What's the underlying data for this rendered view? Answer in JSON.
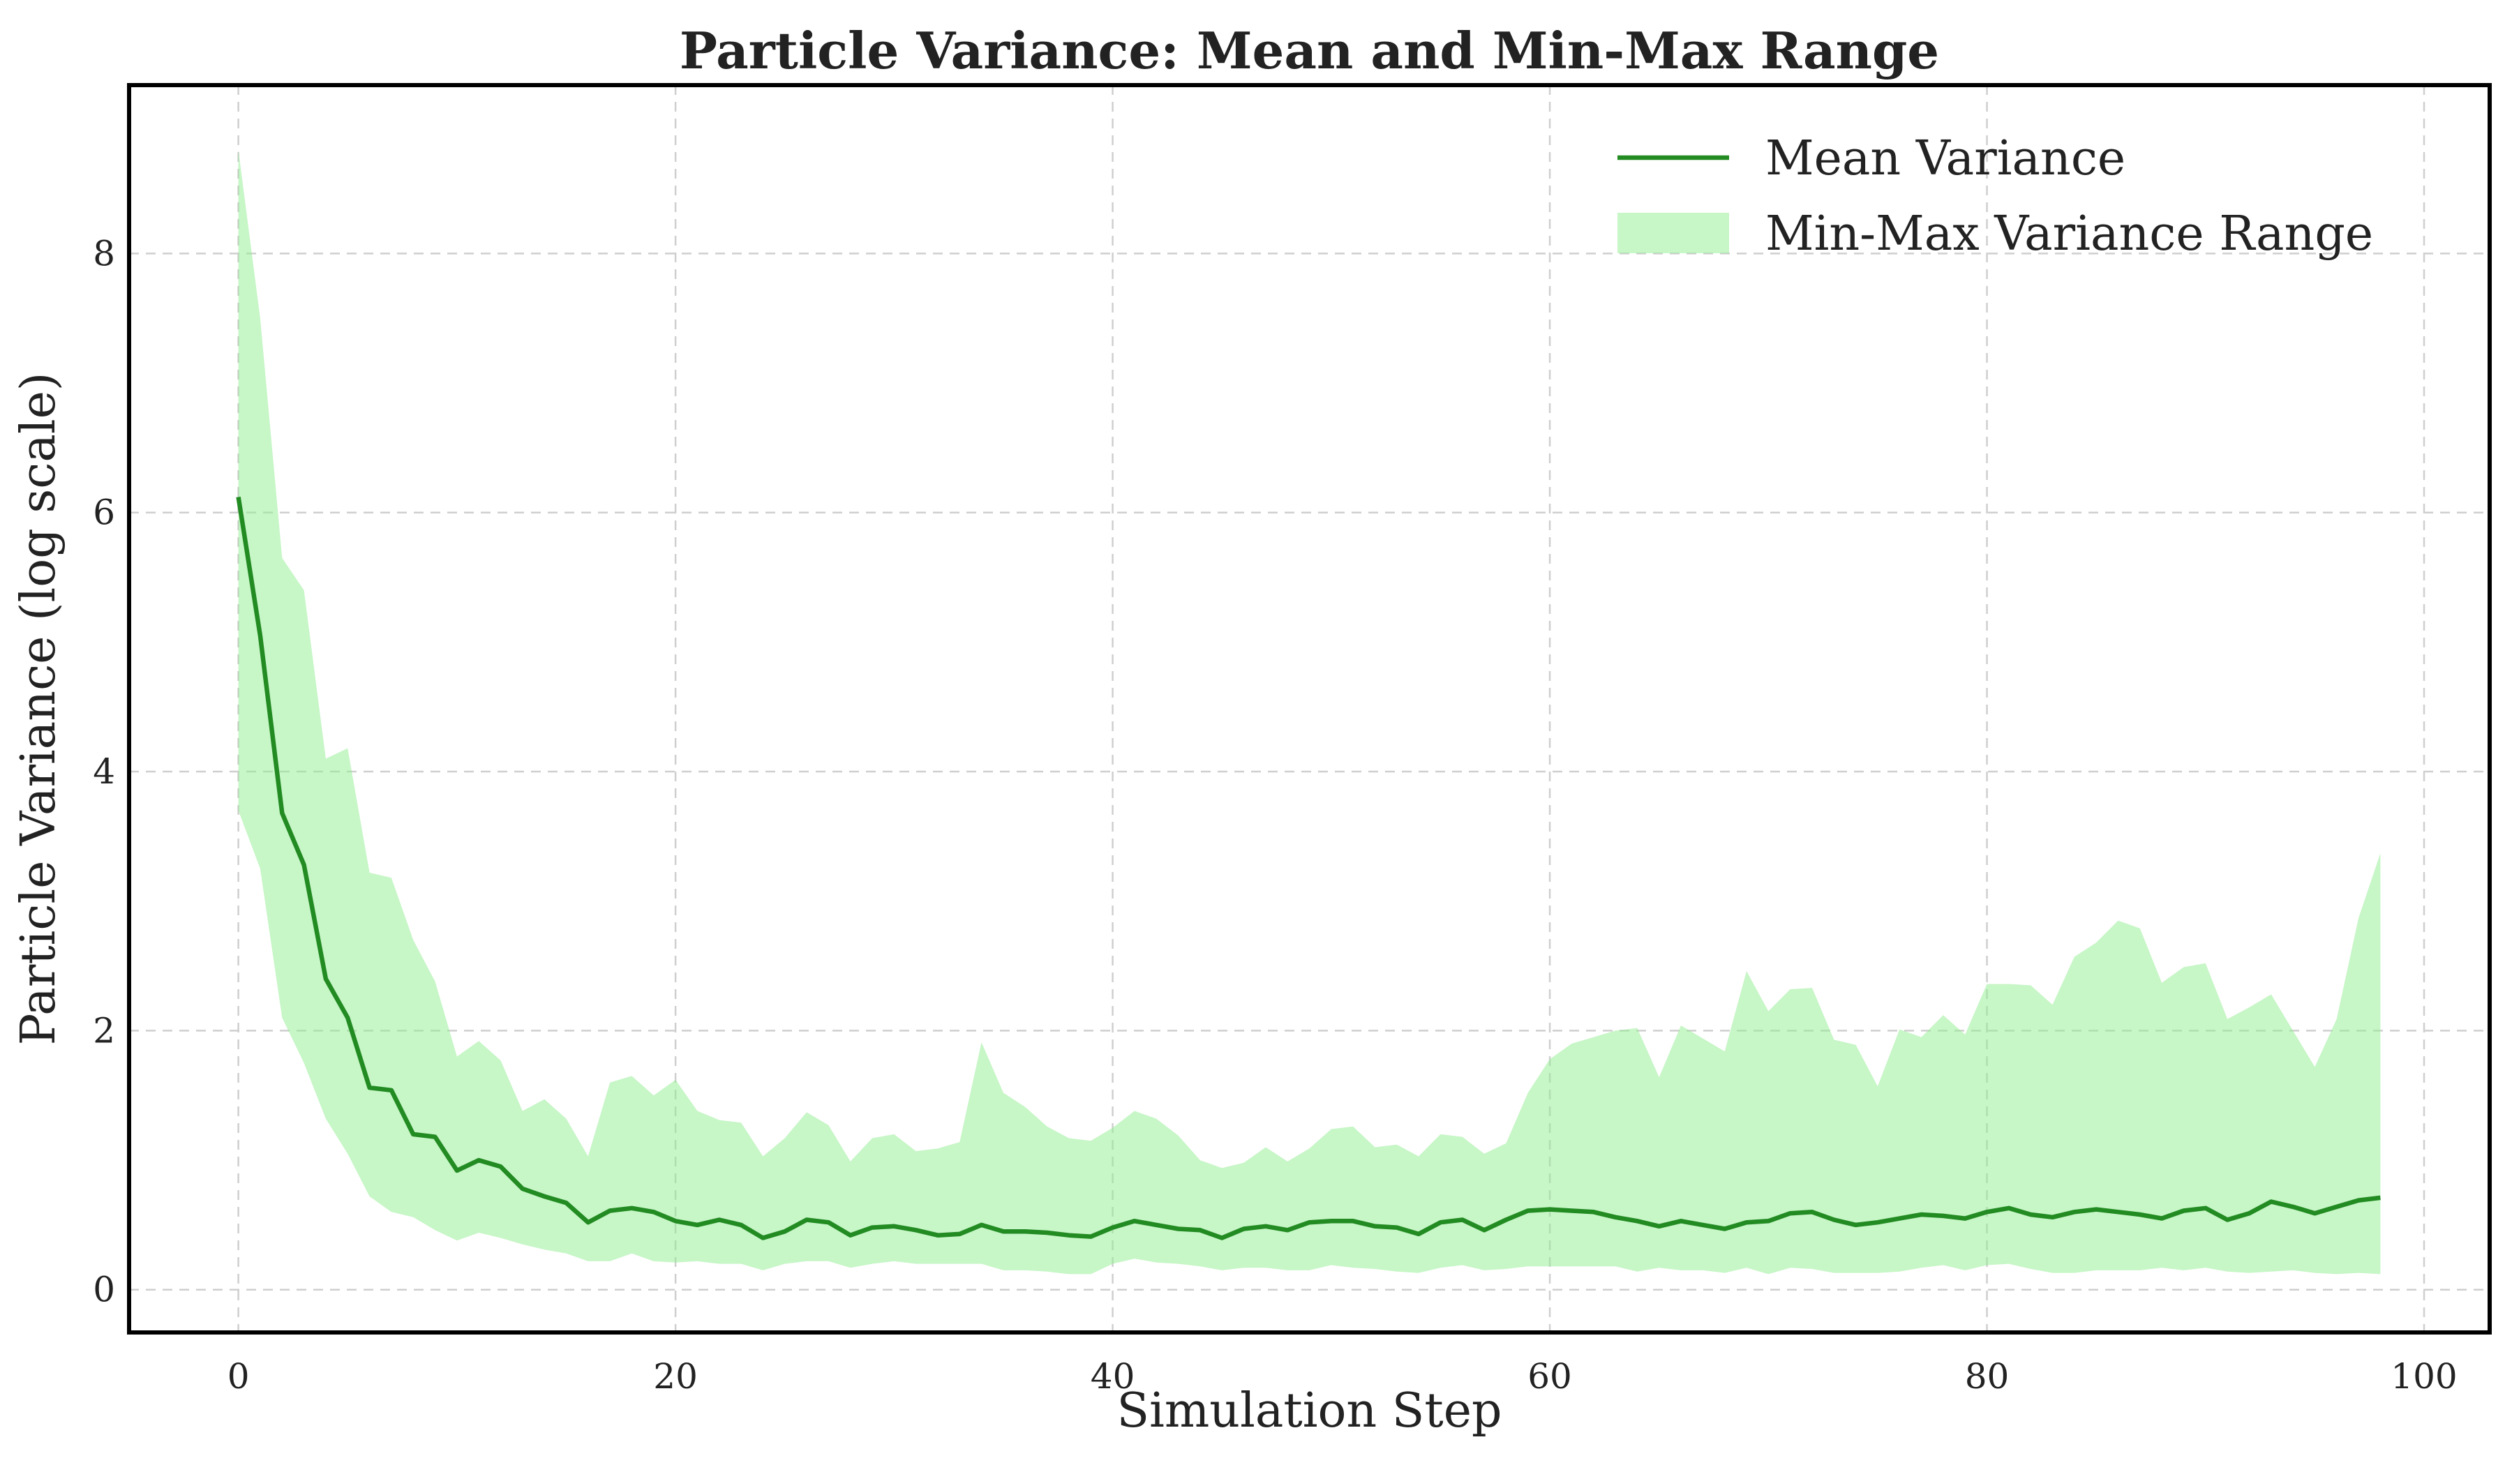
{
  "chart_data": {
    "type": "line",
    "title": "Particle Variance: Mean and Min-Max Range",
    "xlabel": "Simulation Step",
    "ylabel": "Particle Variance (log scale)",
    "xlim": [
      -5,
      103
    ],
    "ylim": [
      -0.33,
      9.3
    ],
    "xticks": [
      0,
      20,
      40,
      60,
      80,
      100
    ],
    "yticks": [
      0,
      2,
      4,
      6,
      8
    ],
    "grid": true,
    "legend_position": "top-right",
    "colors": {
      "mean": "#228b22",
      "range_fill": "#90ee90"
    },
    "series": [
      {
        "name": "Mean Variance",
        "kind": "line",
        "x": [
          0,
          1,
          2,
          3,
          4,
          5,
          6,
          7,
          8,
          9,
          10,
          11,
          12,
          13,
          14,
          15,
          16,
          17,
          18,
          19,
          20,
          21,
          22,
          23,
          24,
          25,
          26,
          27,
          28,
          29,
          30,
          31,
          32,
          33,
          34,
          35,
          36,
          37,
          38,
          39,
          40,
          41,
          42,
          43,
          44,
          45,
          46,
          47,
          48,
          49,
          50,
          51,
          52,
          53,
          54,
          55,
          56,
          57,
          58,
          59,
          60,
          61,
          62,
          63,
          64,
          65,
          66,
          67,
          68,
          69,
          70,
          71,
          72,
          73,
          74,
          75,
          76,
          77,
          78,
          79,
          80,
          81,
          82,
          83,
          84,
          85,
          86,
          87,
          88,
          89,
          90,
          91,
          92,
          93,
          94,
          95,
          96,
          97,
          98
        ],
        "values": [
          6.12,
          5.05,
          3.68,
          3.28,
          2.4,
          2.1,
          1.56,
          1.54,
          1.2,
          1.18,
          0.92,
          1.0,
          0.95,
          0.78,
          0.72,
          0.67,
          0.52,
          0.61,
          0.63,
          0.6,
          0.53,
          0.5,
          0.54,
          0.5,
          0.4,
          0.45,
          0.54,
          0.52,
          0.42,
          0.48,
          0.49,
          0.46,
          0.42,
          0.43,
          0.5,
          0.45,
          0.45,
          0.44,
          0.42,
          0.41,
          0.48,
          0.53,
          0.5,
          0.47,
          0.46,
          0.4,
          0.47,
          0.49,
          0.46,
          0.52,
          0.53,
          0.53,
          0.49,
          0.48,
          0.43,
          0.52,
          0.54,
          0.46,
          0.54,
          0.61,
          0.62,
          0.61,
          0.6,
          0.56,
          0.53,
          0.49,
          0.53,
          0.5,
          0.47,
          0.52,
          0.53,
          0.59,
          0.6,
          0.54,
          0.5,
          0.52,
          0.55,
          0.58,
          0.57,
          0.55,
          0.6,
          0.63,
          0.58,
          0.56,
          0.6,
          0.62,
          0.6,
          0.58,
          0.55,
          0.61,
          0.63,
          0.54,
          0.59,
          0.68,
          0.64,
          0.59,
          0.64,
          0.69,
          0.71
        ]
      },
      {
        "name": "Min-Max Variance Range",
        "kind": "band",
        "x": [
          0,
          1,
          2,
          3,
          4,
          5,
          6,
          7,
          8,
          9,
          10,
          11,
          12,
          13,
          14,
          15,
          16,
          17,
          18,
          19,
          20,
          21,
          22,
          23,
          24,
          25,
          26,
          27,
          28,
          29,
          30,
          31,
          32,
          33,
          34,
          35,
          36,
          37,
          38,
          39,
          40,
          41,
          42,
          43,
          44,
          45,
          46,
          47,
          48,
          49,
          50,
          51,
          52,
          53,
          54,
          55,
          56,
          57,
          58,
          59,
          60,
          61,
          62,
          63,
          64,
          65,
          66,
          67,
          68,
          69,
          70,
          71,
          72,
          73,
          74,
          75,
          76,
          77,
          78,
          79,
          80,
          81,
          82,
          83,
          84,
          85,
          86,
          87,
          88,
          89,
          90,
          91,
          92,
          93,
          94,
          95,
          96,
          97,
          98
        ],
        "min": [
          3.7,
          3.25,
          2.1,
          1.75,
          1.32,
          1.05,
          0.72,
          0.6,
          0.56,
          0.46,
          0.38,
          0.44,
          0.4,
          0.35,
          0.31,
          0.28,
          0.22,
          0.22,
          0.28,
          0.22,
          0.21,
          0.22,
          0.2,
          0.2,
          0.15,
          0.2,
          0.22,
          0.22,
          0.17,
          0.2,
          0.22,
          0.2,
          0.2,
          0.2,
          0.2,
          0.15,
          0.15,
          0.14,
          0.12,
          0.12,
          0.2,
          0.24,
          0.21,
          0.2,
          0.18,
          0.15,
          0.17,
          0.17,
          0.15,
          0.15,
          0.19,
          0.17,
          0.16,
          0.14,
          0.13,
          0.17,
          0.19,
          0.15,
          0.16,
          0.18,
          0.18,
          0.18,
          0.18,
          0.18,
          0.14,
          0.17,
          0.15,
          0.15,
          0.13,
          0.17,
          0.12,
          0.17,
          0.16,
          0.13,
          0.13,
          0.13,
          0.14,
          0.17,
          0.19,
          0.15,
          0.19,
          0.2,
          0.16,
          0.13,
          0.13,
          0.15,
          0.15,
          0.15,
          0.17,
          0.15,
          0.17,
          0.14,
          0.13,
          0.14,
          0.15,
          0.13,
          0.12,
          0.13,
          0.12
        ],
        "max": [
          8.8,
          7.5,
          5.65,
          5.4,
          4.1,
          4.18,
          3.22,
          3.18,
          2.7,
          2.38,
          1.8,
          1.92,
          1.77,
          1.38,
          1.47,
          1.32,
          1.03,
          1.6,
          1.65,
          1.5,
          1.62,
          1.38,
          1.31,
          1.29,
          1.03,
          1.17,
          1.37,
          1.27,
          0.99,
          1.17,
          1.2,
          1.07,
          1.09,
          1.14,
          1.91,
          1.52,
          1.41,
          1.26,
          1.17,
          1.15,
          1.25,
          1.38,
          1.32,
          1.19,
          1.0,
          0.94,
          0.98,
          1.1,
          0.99,
          1.09,
          1.24,
          1.26,
          1.1,
          1.12,
          1.03,
          1.2,
          1.18,
          1.05,
          1.13,
          1.52,
          1.78,
          1.9,
          1.95,
          2.0,
          2.02,
          1.64,
          2.04,
          1.94,
          1.84,
          2.46,
          2.15,
          2.32,
          2.33,
          1.93,
          1.89,
          1.57,
          2.01,
          1.95,
          2.12,
          1.97,
          2.36,
          2.36,
          2.35,
          2.2,
          2.57,
          2.68,
          2.85,
          2.79,
          2.37,
          2.49,
          2.52,
          2.09,
          2.18,
          2.28,
          2.0,
          1.72,
          2.09,
          2.87,
          3.37
        ]
      }
    ]
  }
}
